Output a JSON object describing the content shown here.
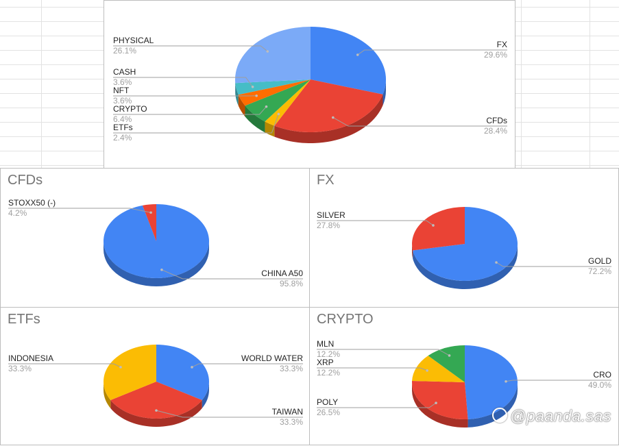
{
  "chart_data": [
    {
      "type": "pie",
      "title": "",
      "slices": [
        {
          "label": "FX",
          "pct_label": "29.6%",
          "value": 29.6,
          "color": "#4285f4"
        },
        {
          "label": "CFDs",
          "pct_label": "28.4%",
          "value": 28.4,
          "color": "#ea4335"
        },
        {
          "label": "ETFs",
          "pct_label": "2.4%",
          "value": 2.4,
          "color": "#fbbc04"
        },
        {
          "label": "CRYPTO",
          "pct_label": "6.4%",
          "value": 6.4,
          "color": "#34a853"
        },
        {
          "label": "NFT",
          "pct_label": "3.6%",
          "value": 3.6,
          "color": "#ff6d01"
        },
        {
          "label": "CASH",
          "pct_label": "3.6%",
          "value": 3.6,
          "color": "#46bdc6"
        },
        {
          "label": "PHYSICAL",
          "pct_label": "26.1%",
          "value": 26.1,
          "color": "#7baaf7"
        }
      ]
    },
    {
      "type": "pie",
      "title": "CFDs",
      "slices": [
        {
          "label": "CHINA A50",
          "pct_label": "95.8%",
          "value": 95.8,
          "color": "#4285f4"
        },
        {
          "label": "STOXX50 (-)",
          "pct_label": "4.2%",
          "value": 4.2,
          "color": "#ea4335"
        }
      ]
    },
    {
      "type": "pie",
      "title": "FX",
      "slices": [
        {
          "label": "GOLD",
          "pct_label": "72.2%",
          "value": 72.2,
          "color": "#4285f4"
        },
        {
          "label": "SILVER",
          "pct_label": "27.8%",
          "value": 27.8,
          "color": "#ea4335"
        }
      ]
    },
    {
      "type": "pie",
      "title": "ETFs",
      "slices": [
        {
          "label": "WORLD WATER",
          "pct_label": "33.3%",
          "value": 33.3,
          "color": "#4285f4"
        },
        {
          "label": "TAIWAN",
          "pct_label": "33.3%",
          "value": 33.3,
          "color": "#ea4335"
        },
        {
          "label": "INDONESIA",
          "pct_label": "33.3%",
          "value": 33.3,
          "color": "#fbbc04"
        }
      ]
    },
    {
      "type": "pie",
      "title": "CRYPTO",
      "slices": [
        {
          "label": "CRO",
          "pct_label": "49.0%",
          "value": 49.0,
          "color": "#4285f4"
        },
        {
          "label": "POLY",
          "pct_label": "26.5%",
          "value": 26.5,
          "color": "#ea4335"
        },
        {
          "label": "XRP",
          "pct_label": "12.2%",
          "value": 12.2,
          "color": "#fbbc04"
        },
        {
          "label": "MLN",
          "pct_label": "12.2%",
          "value": 12.2,
          "color": "#34a853"
        }
      ]
    }
  ],
  "watermark": "@paanda.sas"
}
